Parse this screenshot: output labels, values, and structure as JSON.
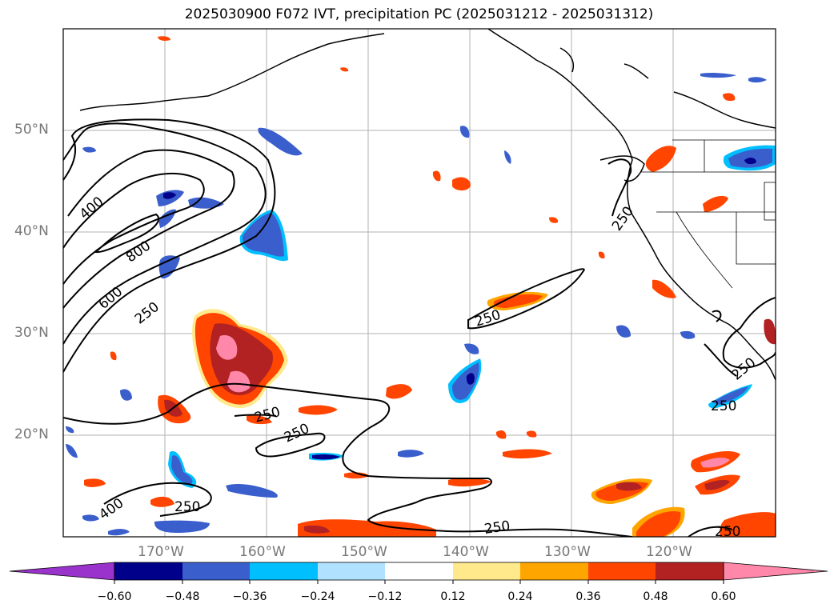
{
  "title": "2025030900 F072 IVT, precipitation PC (2025031212 - 2025031312)",
  "lat_labels": [
    "50°N",
    "40°N",
    "30°N",
    "20°N"
  ],
  "lon_labels": [
    "170°W",
    "160°W",
    "150°W",
    "140°W",
    "130°W",
    "120°W"
  ],
  "contour_labels": [
    "400",
    "800",
    "600",
    "250",
    "250",
    "250",
    "250",
    "250",
    "250",
    "250",
    "400",
    "250",
    "250",
    "250"
  ],
  "colorbar": {
    "ticks": [
      "−0.60",
      "−0.48",
      "−0.36",
      "−0.24",
      "−0.12",
      "0.12",
      "0.24",
      "0.36",
      "0.48",
      "0.60"
    ],
    "colors": [
      "#9933cc",
      "#00008b",
      "#3a5fcd",
      "#00bfff",
      "#b0e2ff",
      "#ffffff",
      "#ffe98a",
      "#ffa500",
      "#ff4500",
      "#b22222",
      "#ff88aa"
    ]
  }
}
